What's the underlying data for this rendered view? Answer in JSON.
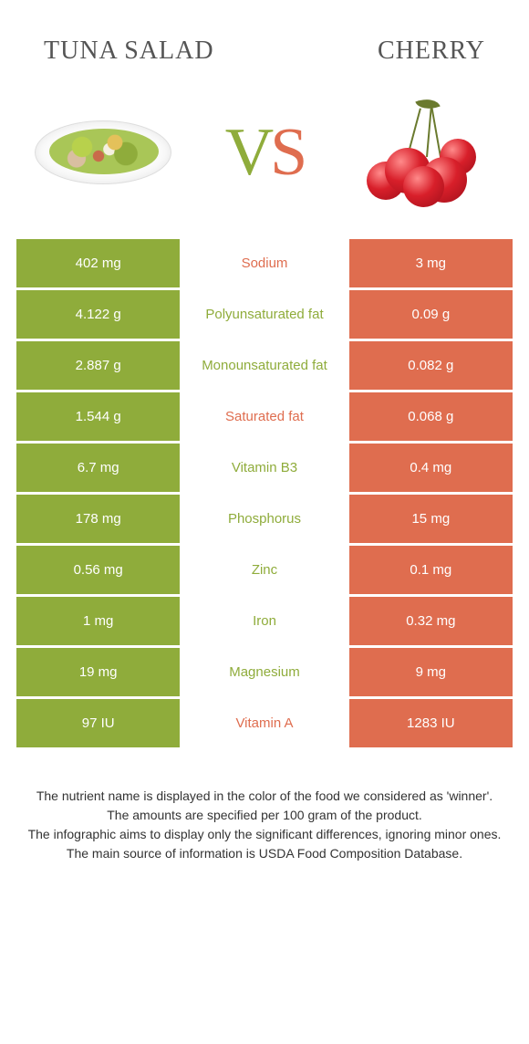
{
  "titles": {
    "left": "Tuna salad",
    "right": "Cherry"
  },
  "vs": {
    "v": "V",
    "s": "S"
  },
  "colors": {
    "green": "#8fac3b",
    "orange": "#df6d4f"
  },
  "rows": [
    {
      "left": "402 mg",
      "label": "Sodium",
      "winner": "orange",
      "right": "3 mg"
    },
    {
      "left": "4.122 g",
      "label": "Polyunsaturated fat",
      "winner": "green",
      "right": "0.09 g"
    },
    {
      "left": "2.887 g",
      "label": "Monounsaturated fat",
      "winner": "green",
      "right": "0.082 g"
    },
    {
      "left": "1.544 g",
      "label": "Saturated fat",
      "winner": "orange",
      "right": "0.068 g"
    },
    {
      "left": "6.7 mg",
      "label": "Vitamin B3",
      "winner": "green",
      "right": "0.4 mg"
    },
    {
      "left": "178 mg",
      "label": "Phosphorus",
      "winner": "green",
      "right": "15 mg"
    },
    {
      "left": "0.56 mg",
      "label": "Zinc",
      "winner": "green",
      "right": "0.1 mg"
    },
    {
      "left": "1 mg",
      "label": "Iron",
      "winner": "green",
      "right": "0.32 mg"
    },
    {
      "left": "19 mg",
      "label": "Magnesium",
      "winner": "green",
      "right": "9 mg"
    },
    {
      "left": "97 IU",
      "label": "Vitamin A",
      "winner": "orange",
      "right": "1283 IU"
    }
  ],
  "footer": {
    "line1": "The nutrient name is displayed in the color of the food we considered as 'winner'.",
    "line2": "The amounts are specified per 100 gram of the product.",
    "line3": "The infographic aims to display only the significant differences, ignoring minor ones.",
    "line4": "The main source of information is USDA Food Composition Database."
  }
}
